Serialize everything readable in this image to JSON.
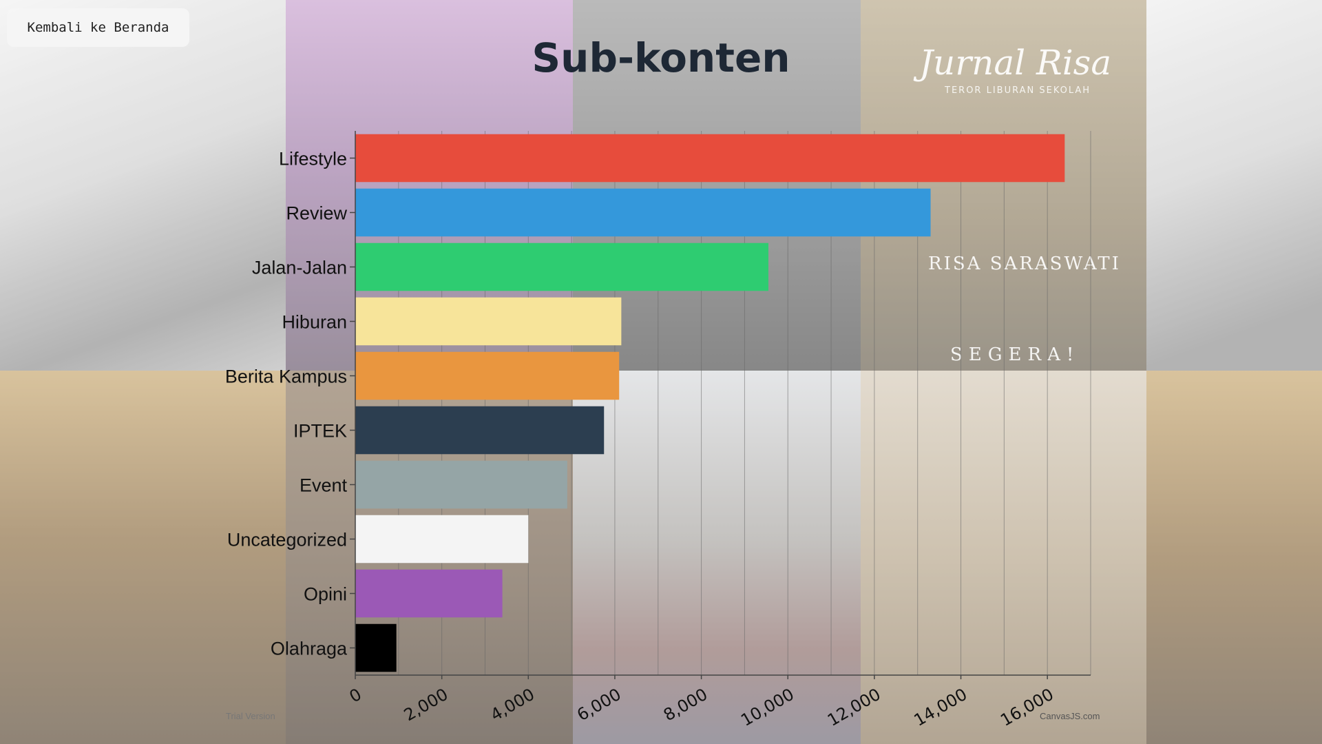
{
  "back_button": {
    "label": "Kembali ke Beranda"
  },
  "background": {
    "poster_title": "Jurnal Risa",
    "poster_subtitle": "TEROR LIBURAN SEKOLAH",
    "poster_author": "RISA SARASWATI",
    "poster_soon": "SEGERA!"
  },
  "watermarks": {
    "left": "Trial Version",
    "right": "CanvasJS.com"
  },
  "colors": {
    "grid": "#666666",
    "axis": "#444444"
  },
  "chart_data": {
    "type": "bar",
    "orientation": "horizontal",
    "title": "Sub-konten",
    "xlabel": "",
    "ylabel": "",
    "xlim": [
      0,
      17000
    ],
    "ticks": [
      0,
      2000,
      4000,
      6000,
      8000,
      10000,
      12000,
      14000,
      16000
    ],
    "tick_labels": [
      "0",
      "2,000",
      "4,000",
      "6,000",
      "8,000",
      "10,000",
      "12,000",
      "14,000",
      "16,000"
    ],
    "grid": true,
    "categories": [
      "Lifestyle",
      "Review",
      "Jalan-Jalan",
      "Hiburan",
      "Berita Kampus",
      "IPTEK",
      "Event",
      "Uncategorized",
      "Opini",
      "Olahraga"
    ],
    "values": [
      16400,
      13300,
      9550,
      6150,
      6100,
      5750,
      4900,
      4000,
      3400,
      950
    ],
    "bar_colors": [
      "#e74c3c",
      "#3498db",
      "#2ecc71",
      "#f7e49a",
      "#e9963f",
      "#2c3e50",
      "#95a5a6",
      "#f4f4f4",
      "#9b59b6",
      "#000000"
    ]
  }
}
